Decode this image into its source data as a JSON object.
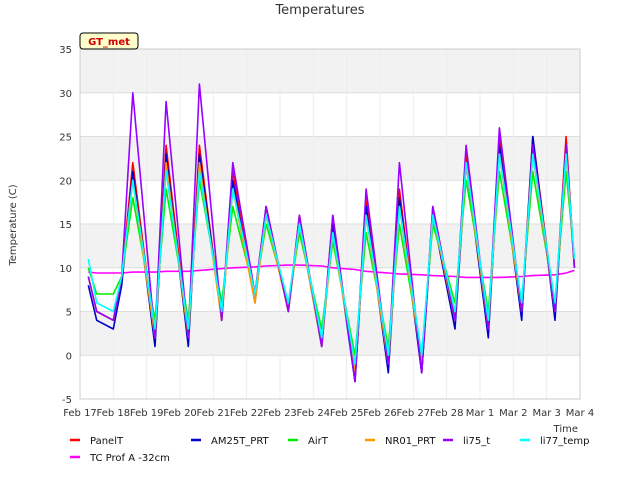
{
  "chart_data": {
    "type": "line",
    "title": "Temperatures",
    "xlabel": "Time",
    "ylabel": "Temperature (C)",
    "badge": "GT_met",
    "ylim": [
      -5,
      35
    ],
    "yticks": [
      -5,
      0,
      5,
      10,
      15,
      20,
      25,
      30,
      35
    ],
    "xlim": [
      "Feb 17",
      "Mar 4"
    ],
    "x_tick_labels": [
      "Feb 17",
      "Feb 18",
      "Feb 19",
      "Feb 20",
      "Feb 21",
      "Feb 22",
      "Feb 23",
      "Feb 24",
      "Feb 25",
      "Feb 26",
      "Feb 27",
      "Feb 28",
      "Mar 1",
      "Mar 2",
      "Mar 3",
      "Mar 4"
    ],
    "grid": true,
    "legend_position": "bottom",
    "x": [
      "Feb 17 06:00",
      "Feb 17 12:00",
      "Feb 18 00:00",
      "Feb 18 06:00",
      "Feb 18 14:00",
      "Feb 19 06:00",
      "Feb 19 14:00",
      "Feb 20 06:00",
      "Feb 20 14:00",
      "Feb 21 06:00",
      "Feb 21 14:00",
      "Feb 22 06:00",
      "Feb 22 14:00",
      "Feb 23 06:00",
      "Feb 23 14:00",
      "Feb 24 06:00",
      "Feb 24 14:00",
      "Feb 25 06:00",
      "Feb 25 14:00",
      "Feb 26 06:00",
      "Feb 26 14:00",
      "Feb 27 06:00",
      "Feb 27 14:00",
      "Feb 28 06:00",
      "Feb 28 14:00",
      "Mar 1 06:00",
      "Mar 1 14:00",
      "Mar 2 06:00",
      "Mar 2 14:00",
      "Mar 3 06:00",
      "Mar 3 14:00",
      "Mar 3 20:00"
    ],
    "series": [
      {
        "name": "PanelT",
        "color": "#ff0000",
        "values": [
          9,
          5,
          4,
          9,
          22,
          2,
          24,
          2,
          24,
          4,
          21,
          7,
          17,
          5,
          16,
          1,
          16,
          -3,
          18,
          -1,
          19,
          -2,
          17,
          4,
          23,
          3,
          25,
          5,
          25,
          5,
          25,
          10
        ]
      },
      {
        "name": "TC Prof A -32cm",
        "color": "#ff00ff",
        "values": [
          9.5,
          9.4,
          9.4,
          9.4,
          9.5,
          9.5,
          9.6,
          9.6,
          9.7,
          9.9,
          10.0,
          10.1,
          10.2,
          10.3,
          10.3,
          10.2,
          10.0,
          9.8,
          9.6,
          9.4,
          9.3,
          9.2,
          9.1,
          9.0,
          8.9,
          8.9,
          8.9,
          9.0,
          9.1,
          9.2,
          9.4,
          9.7
        ]
      },
      {
        "name": "AM25T_PRT",
        "color": "#0000cc",
        "values": [
          8,
          4,
          3,
          8,
          21,
          1,
          23,
          1,
          23,
          4,
          20,
          6,
          17,
          5,
          15,
          1,
          15,
          -3,
          17,
          -2,
          18,
          -2,
          16,
          3,
          22,
          2,
          24,
          4,
          25,
          4,
          24,
          10
        ]
      },
      {
        "name": "AirT",
        "color": "#00ee00",
        "values": [
          10,
          7,
          7,
          9,
          18,
          4,
          19,
          4,
          20,
          6,
          17,
          7,
          15,
          6,
          14,
          3,
          13,
          0,
          14,
          1,
          15,
          0,
          15,
          6,
          20,
          5,
          21,
          6,
          21,
          6,
          21,
          11
        ]
      },
      {
        "name": "NR01_PRT",
        "color": "#ff9900",
        "values": [
          9,
          5,
          4,
          9,
          20,
          2,
          22,
          2,
          22,
          4,
          19,
          6,
          16,
          5,
          15,
          1,
          14,
          -2,
          16,
          -1,
          17,
          -1,
          16,
          4,
          22,
          3,
          23,
          5,
          23,
          5,
          23,
          10
        ]
      },
      {
        "name": "li75_t",
        "color": "#9900ff",
        "values": [
          9,
          5,
          4,
          9,
          30,
          2,
          29,
          2,
          31,
          4,
          22,
          7,
          17,
          5,
          16,
          1,
          16,
          -3,
          19,
          -1,
          22,
          -2,
          17,
          4,
          24,
          3,
          26,
          5,
          24,
          5,
          24,
          10
        ]
      },
      {
        "name": "li77_temp",
        "color": "#00ffff",
        "values": [
          11,
          6,
          5,
          9,
          20,
          3,
          21,
          3,
          21,
          5,
          19,
          7,
          16,
          6,
          15,
          2,
          14,
          -1,
          16,
          0,
          17,
          0,
          16,
          5,
          22,
          4,
          23,
          6,
          23,
          6,
          23,
          11
        ]
      }
    ]
  }
}
